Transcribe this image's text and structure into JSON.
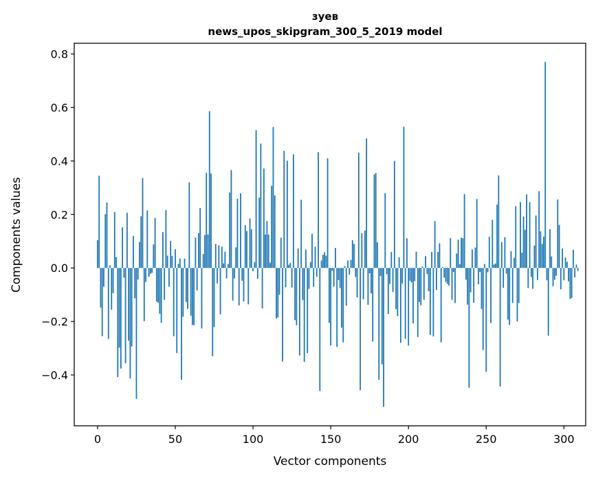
{
  "chart_data": {
    "type": "bar",
    "title_line1": "зуев",
    "title_line2": "news_upos_skipgram_300_5_2019 model",
    "xlabel": "Vector components",
    "ylabel": "Components values",
    "xlim": [
      -15,
      314
    ],
    "ylim": [
      -0.59,
      0.84
    ],
    "xticks": [
      0,
      50,
      100,
      150,
      200,
      250,
      300
    ],
    "yticks": [
      -0.4,
      -0.2,
      0.0,
      0.2,
      0.4,
      0.6,
      0.8
    ],
    "ytick_labels": [
      "−0.4",
      "−0.2",
      "0.0",
      "0.2",
      "0.4",
      "0.6",
      "0.8"
    ],
    "bar_color": "#1f77b4",
    "values": [
      0.104,
      0.345,
      -0.148,
      -0.255,
      -0.07,
      0.201,
      0.245,
      -0.265,
      0.01,
      -0.156,
      -0.094,
      0.209,
      0.041,
      -0.408,
      -0.298,
      -0.376,
      0.152,
      -0.036,
      -0.356,
      0.206,
      -0.272,
      -0.413,
      -0.293,
      0.12,
      -0.113,
      -0.489,
      -0.043,
      0.097,
      0.193,
      0.336,
      -0.199,
      -0.052,
      0.215,
      -0.033,
      -0.022,
      -0.018,
      0.088,
      0.187,
      -0.126,
      -0.13,
      -0.171,
      -0.205,
      0.134,
      -0.119,
      0.217,
      0.046,
      -0.07,
      0.101,
      0.045,
      -0.255,
      0.07,
      -0.318,
      0.016,
      0.035,
      -0.418,
      -0.182,
      0.035,
      -0.127,
      -0.153,
      0.32,
      -0.178,
      -0.213,
      -0.214,
      0.114,
      -0.084,
      0.131,
      0.224,
      -0.226,
      0.052,
      0.123,
      0.356,
      0.125,
      0.586,
      0.353,
      -0.33,
      -0.221,
      0.09,
      -0.058,
      0.085,
      -0.173,
      0.08,
      0.017,
      0.061,
      -0.039,
      0.015,
      0.282,
      0.366,
      -0.122,
      -0.039,
      0.077,
      0.259,
      -0.14,
      0.279,
      -0.048,
      -0.125,
      0.16,
      0.138,
      -0.136,
      0.185,
      0.145,
      -0.012,
      0.022,
      0.515,
      -0.04,
      0.263,
      0.465,
      -0.151,
      0.372,
      0.125,
      0.175,
      0.125,
      0.02,
      0.307,
      0.527,
      0.271,
      -0.189,
      -0.185,
      -0.1,
      0.113,
      -0.35,
      0.438,
      -0.072,
      0.401,
      0.012,
      0.019,
      -0.073,
      0.425,
      -0.195,
      -0.214,
      0.073,
      -0.327,
      0.255,
      -0.12,
      -0.351,
      0.069,
      -0.318,
      -0.078,
      0.022,
      0.128,
      -0.07,
      0.08,
      -0.033,
      0.433,
      -0.46,
      0.028,
      0.049,
      0.059,
      0.046,
      0.41,
      -0.205,
      -0.29,
      -0.01,
      -0.07,
      0.075,
      -0.295,
      -0.045,
      -0.075,
      -0.223,
      -0.278,
      0.007,
      -0.141,
      0.028,
      -0.025,
      0.03,
      0.104,
      0.09,
      -0.034,
      -0.11,
      0.431,
      -0.457,
      0.13,
      -0.117,
      0.14,
      0.484,
      -0.138,
      -0.02,
      -0.095,
      -0.275,
      0.35,
      0.355,
      0.096,
      -0.418,
      -0.03,
      -0.36,
      -0.519,
      0.28,
      -0.023,
      -0.172,
      -0.06,
      0.06,
      -0.09,
      0.4,
      -0.154,
      -0.18,
      0.04,
      -0.28,
      -0.058,
      0.528,
      -0.265,
      0.111,
      -0.29,
      -0.048,
      -0.054,
      -0.207,
      -0.049,
      0.061,
      -0.258,
      -0.127,
      -0.14,
      0.006,
      -0.119,
      0.044,
      -0.023,
      -0.087,
      -0.25,
      0.06,
      -0.256,
      0.175,
      -0.082,
      0.06,
      0.092,
      -0.278,
      0.003,
      -0.036,
      -0.052,
      -0.06,
      -0.066,
      0.112,
      -0.119,
      -0.015,
      -0.131,
      0.054,
      0.106,
      0.014,
      0.113,
      0.111,
      0.276,
      -0.044,
      -0.137,
      -0.448,
      -0.091,
      0.069,
      -0.13,
      0.076,
      0.258,
      -0.061,
      -0.015,
      -0.153,
      -0.307,
      0.015,
      -0.388,
      -0.016,
      0.117,
      -0.206,
      0.18,
      0.013,
      0.017,
      0.237,
      0.346,
      -0.443,
      0.097,
      -0.074,
      0.115,
      -0.021,
      -0.193,
      -0.213,
      0.063,
      -0.131,
      0.038,
      0.231,
      -0.2,
      -0.131,
      0.246,
      0.057,
      0.192,
      0.143,
      0.275,
      -0.075,
      0.246,
      -0.034,
      -0.078,
      0.084,
      0.196,
      -0.045,
      0.287,
      0.137,
      0.09,
      0.117,
      0.77,
      -0.046,
      -0.253,
      0.145,
      0.043,
      -0.068,
      -0.044,
      -0.029,
      0.256,
      0.161,
      -0.08,
      0.073,
      -0.046,
      0.039,
      0.023,
      -0.05,
      -0.116,
      -0.112,
      0.068,
      -0.035,
      0.013,
      -0.011
    ]
  }
}
